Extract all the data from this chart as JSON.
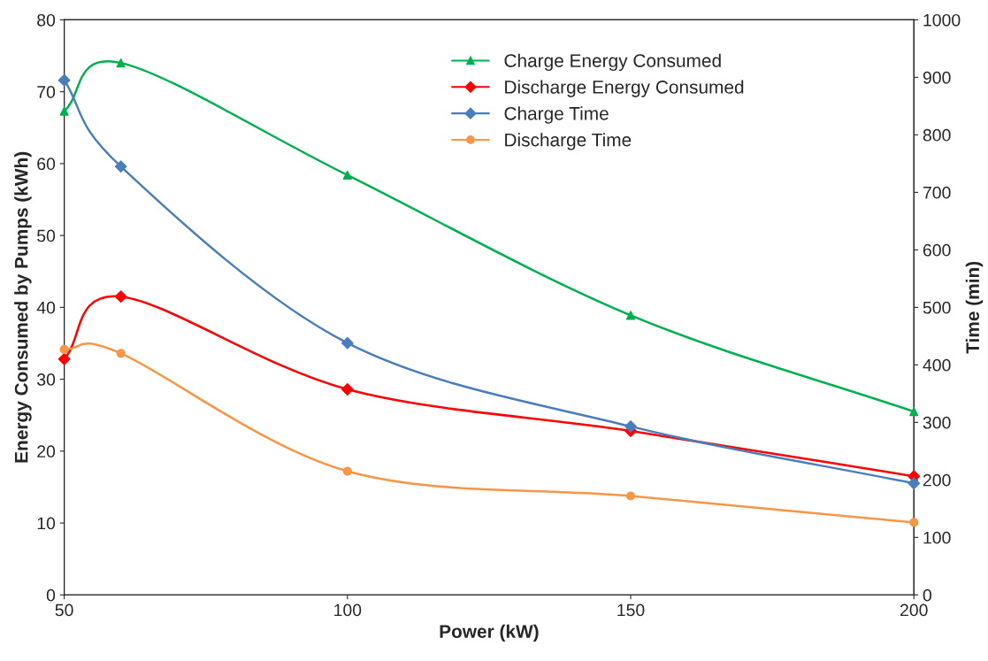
{
  "chart_data": {
    "type": "line",
    "xlabel": "Power (kW)",
    "ylabel": "Energy Consumed by Pumps (kWh)",
    "y2label": "Time (min)",
    "x": [
      50,
      60,
      100,
      150,
      200
    ],
    "xlim": [
      50,
      200
    ],
    "xticks": [
      50,
      100,
      150,
      200
    ],
    "ylim": [
      0,
      80
    ],
    "yticks": [
      0,
      10,
      20,
      30,
      40,
      50,
      60,
      70,
      80
    ],
    "y2lim": [
      0,
      1000
    ],
    "y2ticks": [
      0,
      100,
      200,
      300,
      400,
      500,
      600,
      700,
      800,
      900,
      1000
    ],
    "grid": false,
    "legend": "top right",
    "line_style": "solid",
    "series": [
      {
        "name": "Charge Energy Consumed",
        "color": "#00b050",
        "marker": "triangle",
        "values": [
          67.3,
          74,
          58.4,
          38.9,
          25.5
        ]
      },
      {
        "name": "Discharge Energy Consumed",
        "color": "#ff0000",
        "marker": "diamond",
        "values": [
          32.8,
          41.5,
          28.6,
          22.8,
          16.5
        ]
      },
      {
        "name": "Charge Time",
        "color": "#4a7ebb",
        "marker": "diamond",
        "axis": "y2",
        "values": [
          895,
          745,
          438,
          293,
          194
        ]
      },
      {
        "name": "Discharge Time",
        "color": "#f79646",
        "marker": "circle",
        "axis": "y2",
        "values": [
          427,
          420,
          215,
          172,
          126
        ]
      }
    ]
  }
}
